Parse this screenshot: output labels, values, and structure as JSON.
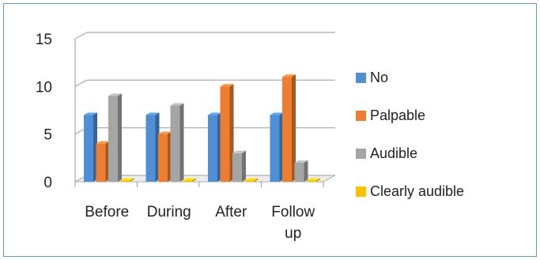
{
  "chart_data": {
    "type": "bar",
    "title": "",
    "xlabel": "",
    "ylabel": "",
    "categories": [
      [
        "Before"
      ],
      [
        "During"
      ],
      [
        "After"
      ],
      [
        "Follow",
        "up"
      ]
    ],
    "ylim": [
      0,
      15
    ],
    "yticks": [
      0,
      5,
      10,
      15
    ],
    "grid": true,
    "legend_position": "right",
    "series": [
      {
        "name": "No",
        "color": "#4f8fd6",
        "values": [
          7,
          7,
          7,
          7
        ]
      },
      {
        "name": "Palpable",
        "color": "#ed7d31",
        "values": [
          4,
          5,
          10,
          11
        ]
      },
      {
        "name": "Audible",
        "color": "#a5a5a5",
        "values": [
          9,
          8,
          3,
          2
        ]
      },
      {
        "name": "Clearly audible",
        "color": "#ffc000",
        "values": [
          0,
          0,
          0,
          0
        ]
      }
    ]
  }
}
